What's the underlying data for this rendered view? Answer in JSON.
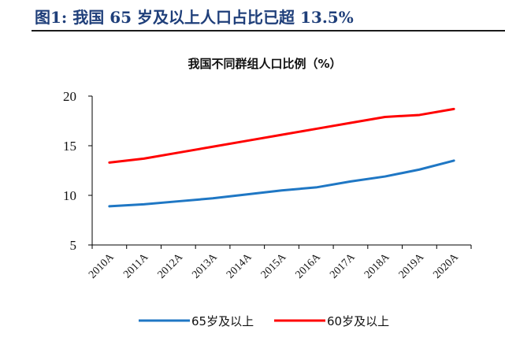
{
  "figure": {
    "label": "图1: 我国 65 岁及以上人口占比已超 13.5%"
  },
  "chart_data": {
    "type": "line",
    "title": "我国不同群组人口比例（%）",
    "xlabel": "",
    "ylabel": "",
    "categories": [
      "2010A",
      "2011A",
      "2012A",
      "2013A",
      "2014A",
      "2015A",
      "2016A",
      "2017A",
      "2018A",
      "2019A",
      "2020A"
    ],
    "ylim": [
      5,
      20
    ],
    "yticks": [
      5,
      10,
      15,
      20
    ],
    "grid": false,
    "legend_position": "bottom",
    "series": [
      {
        "name": "65岁及以上",
        "color": "#1f77c4",
        "values": [
          8.9,
          9.1,
          9.4,
          9.7,
          10.1,
          10.5,
          10.8,
          11.4,
          11.9,
          12.6,
          13.5
        ]
      },
      {
        "name": "60岁及以上",
        "color": "#ff0000",
        "values": [
          13.3,
          13.7,
          14.3,
          14.9,
          15.5,
          16.1,
          16.7,
          17.3,
          17.9,
          18.1,
          18.7
        ]
      }
    ]
  }
}
